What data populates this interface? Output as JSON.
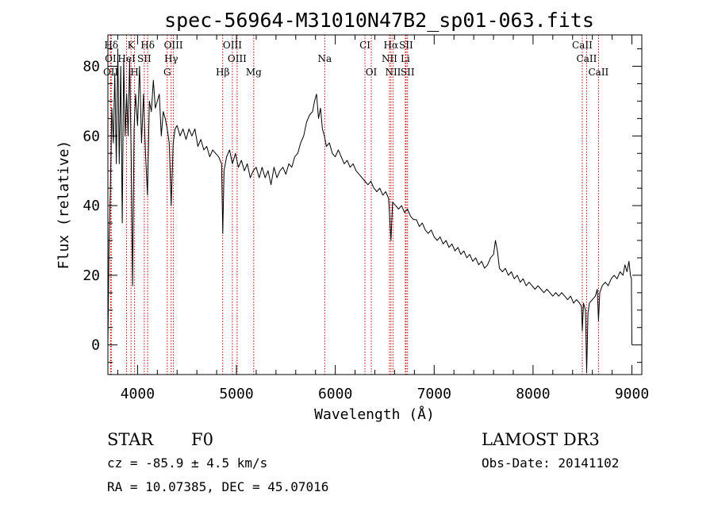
{
  "chart_data": {
    "type": "line",
    "title": "spec-56964-M31010N47B2_sp01-063.fits",
    "xlabel": "Wavelength (Å)",
    "ylabel": "Flux (relative)",
    "xlim": [
      3700,
      9100
    ],
    "ylim": [
      -8.5,
      89
    ],
    "x_ticks": [
      4000,
      5000,
      6000,
      7000,
      8000,
      9000
    ],
    "y_ticks": [
      0,
      20,
      40,
      60,
      80
    ],
    "grid": false,
    "series": [
      {
        "color": "#000000",
        "points": [
          [
            3700,
            0
          ],
          [
            3712,
            30
          ],
          [
            3725,
            44
          ],
          [
            3740,
            68
          ],
          [
            3755,
            58
          ],
          [
            3770,
            78
          ],
          [
            3785,
            52
          ],
          [
            3800,
            85
          ],
          [
            3815,
            52
          ],
          [
            3830,
            80
          ],
          [
            3845,
            35
          ],
          [
            3860,
            82
          ],
          [
            3875,
            60
          ],
          [
            3890,
            72
          ],
          [
            3905,
            60
          ],
          [
            3920,
            82
          ],
          [
            3935,
            55
          ],
          [
            3950,
            17
          ],
          [
            3965,
            62
          ],
          [
            3980,
            72
          ],
          [
            4000,
            63
          ],
          [
            4020,
            80
          ],
          [
            4040,
            58
          ],
          [
            4060,
            72
          ],
          [
            4080,
            55
          ],
          [
            4100,
            43
          ],
          [
            4120,
            70
          ],
          [
            4140,
            67
          ],
          [
            4160,
            76
          ],
          [
            4180,
            68
          ],
          [
            4200,
            70
          ],
          [
            4220,
            72
          ],
          [
            4240,
            60
          ],
          [
            4260,
            67
          ],
          [
            4280,
            65
          ],
          [
            4300,
            62
          ],
          [
            4320,
            58
          ],
          [
            4340,
            40
          ],
          [
            4360,
            58
          ],
          [
            4380,
            62
          ],
          [
            4400,
            63
          ],
          [
            4430,
            60
          ],
          [
            4460,
            62
          ],
          [
            4490,
            59
          ],
          [
            4520,
            62
          ],
          [
            4550,
            60
          ],
          [
            4580,
            62
          ],
          [
            4610,
            57
          ],
          [
            4640,
            59
          ],
          [
            4670,
            56
          ],
          [
            4700,
            57
          ],
          [
            4730,
            54
          ],
          [
            4760,
            56
          ],
          [
            4790,
            55
          ],
          [
            4820,
            54
          ],
          [
            4850,
            52
          ],
          [
            4862,
            32
          ],
          [
            4875,
            50
          ],
          [
            4900,
            54
          ],
          [
            4930,
            56
          ],
          [
            4960,
            52
          ],
          [
            4990,
            55
          ],
          [
            5020,
            51
          ],
          [
            5050,
            53
          ],
          [
            5080,
            50
          ],
          [
            5110,
            52
          ],
          [
            5140,
            48
          ],
          [
            5170,
            50
          ],
          [
            5200,
            51
          ],
          [
            5230,
            48
          ],
          [
            5260,
            51
          ],
          [
            5290,
            48
          ],
          [
            5320,
            50
          ],
          [
            5350,
            46
          ],
          [
            5380,
            51
          ],
          [
            5410,
            48
          ],
          [
            5440,
            50
          ],
          [
            5470,
            51
          ],
          [
            5500,
            49
          ],
          [
            5530,
            52
          ],
          [
            5560,
            51
          ],
          [
            5590,
            54
          ],
          [
            5620,
            55
          ],
          [
            5650,
            58
          ],
          [
            5680,
            60
          ],
          [
            5710,
            64
          ],
          [
            5740,
            66
          ],
          [
            5770,
            67
          ],
          [
            5790,
            70
          ],
          [
            5810,
            72
          ],
          [
            5830,
            65
          ],
          [
            5850,
            68
          ],
          [
            5870,
            62
          ],
          [
            5890,
            60
          ],
          [
            5910,
            57
          ],
          [
            5940,
            58
          ],
          [
            5970,
            55
          ],
          [
            6000,
            54
          ],
          [
            6030,
            56
          ],
          [
            6060,
            54
          ],
          [
            6090,
            52
          ],
          [
            6120,
            53
          ],
          [
            6150,
            51
          ],
          [
            6180,
            52
          ],
          [
            6210,
            50
          ],
          [
            6240,
            49
          ],
          [
            6270,
            48
          ],
          [
            6300,
            47
          ],
          [
            6330,
            46
          ],
          [
            6360,
            47
          ],
          [
            6390,
            45
          ],
          [
            6420,
            44
          ],
          [
            6450,
            45
          ],
          [
            6480,
            43
          ],
          [
            6510,
            44
          ],
          [
            6540,
            42
          ],
          [
            6563,
            30
          ],
          [
            6580,
            41
          ],
          [
            6610,
            40
          ],
          [
            6640,
            39
          ],
          [
            6670,
            40
          ],
          [
            6700,
            38
          ],
          [
            6730,
            39
          ],
          [
            6760,
            37
          ],
          [
            6790,
            36
          ],
          [
            6820,
            36
          ],
          [
            6850,
            34
          ],
          [
            6880,
            35
          ],
          [
            6910,
            33
          ],
          [
            6940,
            32
          ],
          [
            6970,
            33
          ],
          [
            7000,
            31
          ],
          [
            7030,
            30
          ],
          [
            7060,
            31
          ],
          [
            7090,
            29
          ],
          [
            7120,
            30
          ],
          [
            7150,
            28
          ],
          [
            7180,
            29
          ],
          [
            7210,
            27
          ],
          [
            7240,
            28
          ],
          [
            7270,
            26
          ],
          [
            7300,
            27
          ],
          [
            7330,
            25
          ],
          [
            7360,
            26
          ],
          [
            7390,
            24
          ],
          [
            7420,
            25
          ],
          [
            7450,
            23
          ],
          [
            7480,
            24
          ],
          [
            7510,
            22
          ],
          [
            7540,
            23
          ],
          [
            7570,
            25
          ],
          [
            7600,
            26
          ],
          [
            7620,
            30
          ],
          [
            7640,
            27
          ],
          [
            7660,
            22
          ],
          [
            7690,
            21
          ],
          [
            7720,
            22
          ],
          [
            7750,
            20
          ],
          [
            7780,
            21
          ],
          [
            7810,
            19
          ],
          [
            7840,
            20
          ],
          [
            7870,
            18
          ],
          [
            7900,
            19
          ],
          [
            7930,
            17
          ],
          [
            7960,
            18
          ],
          [
            7990,
            17
          ],
          [
            8020,
            16
          ],
          [
            8050,
            17
          ],
          [
            8080,
            16
          ],
          [
            8110,
            15
          ],
          [
            8140,
            16
          ],
          [
            8170,
            15
          ],
          [
            8200,
            14
          ],
          [
            8230,
            15
          ],
          [
            8260,
            14
          ],
          [
            8290,
            15
          ],
          [
            8320,
            14
          ],
          [
            8350,
            13
          ],
          [
            8380,
            14
          ],
          [
            8410,
            12
          ],
          [
            8440,
            13
          ],
          [
            8470,
            12
          ],
          [
            8490,
            11
          ],
          [
            8498,
            4
          ],
          [
            8510,
            12
          ],
          [
            8530,
            10
          ],
          [
            8542,
            -8
          ],
          [
            8555,
            9
          ],
          [
            8570,
            12
          ],
          [
            8600,
            13
          ],
          [
            8630,
            14
          ],
          [
            8650,
            16
          ],
          [
            8662,
            7
          ],
          [
            8675,
            15
          ],
          [
            8700,
            17
          ],
          [
            8730,
            18
          ],
          [
            8760,
            17
          ],
          [
            8790,
            19
          ],
          [
            8820,
            20
          ],
          [
            8850,
            19
          ],
          [
            8880,
            21
          ],
          [
            8910,
            20
          ],
          [
            8930,
            23
          ],
          [
            8950,
            21
          ],
          [
            8970,
            24
          ],
          [
            8985,
            20
          ],
          [
            8995,
            19
          ],
          [
            9000,
            0
          ]
        ]
      }
    ],
    "spectral_lines": [
      {
        "label": "Hδ",
        "wl": 3734,
        "row": 1
      },
      {
        "label": "K",
        "wl": 3934,
        "row": 1
      },
      {
        "label": "Hδ",
        "wl": 4102,
        "row": 1
      },
      {
        "label": "OIII",
        "wl": 4363,
        "row": 1
      },
      {
        "label": "OIII",
        "wl": 4959,
        "row": 1
      },
      {
        "label": "CI",
        "wl": 6300,
        "row": 1
      },
      {
        "label": "Hα",
        "wl": 6563,
        "row": 1
      },
      {
        "label": "SII",
        "wl": 6716,
        "row": 1
      },
      {
        "label": "CaII",
        "wl": 8498,
        "row": 1
      },
      {
        "label": "OI",
        "wl": 3727,
        "row": 2
      },
      {
        "label": "HeI",
        "wl": 3889,
        "row": 2
      },
      {
        "label": "SII",
        "wl": 4068,
        "row": 2
      },
      {
        "label": "Hγ",
        "wl": 4340,
        "row": 2
      },
      {
        "label": "OIII",
        "wl": 5007,
        "row": 2
      },
      {
        "label": "Na",
        "wl": 5893,
        "row": 2
      },
      {
        "label": "NII",
        "wl": 6548,
        "row": 2
      },
      {
        "label": "Li",
        "wl": 6708,
        "row": 2
      },
      {
        "label": "CaII",
        "wl": 8542,
        "row": 2
      },
      {
        "label": "OII",
        "wl": 3729,
        "row": 3
      },
      {
        "label": "H",
        "wl": 3970,
        "row": 3
      },
      {
        "label": "G",
        "wl": 4300,
        "row": 3
      },
      {
        "label": "Hβ",
        "wl": 4861,
        "row": 3
      },
      {
        "label": "Mg",
        "wl": 5175,
        "row": 3
      },
      {
        "label": "OI",
        "wl": 6364,
        "row": 3
      },
      {
        "label": "NII",
        "wl": 6584,
        "row": 3
      },
      {
        "label": "SII",
        "wl": 6731,
        "row": 3
      },
      {
        "label": "CaII",
        "wl": 8662,
        "row": 3
      }
    ],
    "line_color": "#c00000"
  },
  "footer": {
    "object_class": "STAR",
    "subclass": "F0",
    "cz": "cz = -85.9 ± 4.5 km/s",
    "coords": "RA =  10.07385, DEC =  45.07016",
    "survey": "LAMOST DR3",
    "obs_date": "Obs-Date: 20141102"
  }
}
